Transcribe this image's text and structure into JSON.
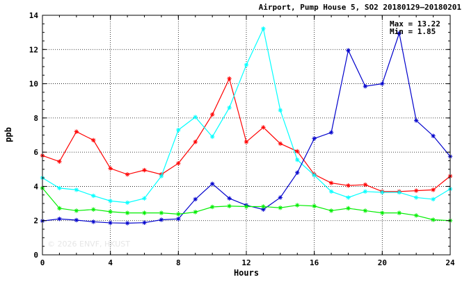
{
  "chart_data": {
    "type": "line",
    "title": "Airport, Pump House 5, SO2 20180129–20180201",
    "xlabel": "Hours",
    "ylabel": "ppb",
    "xlim": [
      0,
      24
    ],
    "ylim": [
      0,
      14
    ],
    "x_ticks": [
      "0",
      "4",
      "8",
      "12",
      "16",
      "20",
      "24"
    ],
    "y_ticks": [
      "0",
      "2",
      "4",
      "6",
      "8",
      "10",
      "12",
      "14"
    ],
    "grid": true,
    "max_label": "Max = 13.22",
    "min_label": "Min =  1.85",
    "watermark": "© 2026  ENVF, HKUST",
    "x": [
      0,
      1,
      2,
      3,
      4,
      5,
      6,
      7,
      8,
      9,
      10,
      11,
      12,
      13,
      14,
      15,
      16,
      17,
      18,
      19,
      20,
      21,
      22,
      23,
      24
    ],
    "series": [
      {
        "color": "#ff0000",
        "values": [
          5.8,
          5.45,
          7.2,
          6.7,
          5.05,
          4.7,
          4.95,
          4.7,
          5.35,
          6.6,
          8.2,
          10.3,
          6.6,
          7.45,
          6.5,
          6.05,
          4.7,
          4.2,
          4.05,
          4.1,
          3.7,
          3.7,
          3.75,
          3.8,
          4.6
        ]
      },
      {
        "color": "#00ffff",
        "values": [
          4.5,
          3.9,
          3.8,
          3.45,
          3.15,
          3.05,
          3.3,
          4.6,
          7.3,
          8.05,
          6.9,
          8.6,
          11.1,
          13.22,
          8.45,
          5.55,
          4.65,
          3.7,
          3.35,
          3.7,
          3.65,
          3.65,
          3.35,
          3.25,
          3.85
        ]
      },
      {
        "color": "#0000cc",
        "values": [
          1.98,
          2.1,
          2.03,
          1.93,
          1.87,
          1.85,
          1.88,
          2.05,
          2.1,
          3.25,
          4.15,
          3.3,
          2.9,
          2.65,
          3.35,
          4.8,
          6.8,
          7.15,
          11.95,
          9.85,
          10.0,
          12.95,
          7.85,
          6.95,
          5.75
        ]
      },
      {
        "color": "#00ee00",
        "values": [
          3.9,
          2.72,
          2.58,
          2.65,
          2.52,
          2.45,
          2.45,
          2.45,
          2.38,
          2.5,
          2.8,
          2.85,
          2.82,
          2.82,
          2.75,
          2.9,
          2.85,
          2.58,
          2.72,
          2.58,
          2.45,
          2.45,
          2.3,
          2.05,
          2.0
        ]
      }
    ]
  }
}
